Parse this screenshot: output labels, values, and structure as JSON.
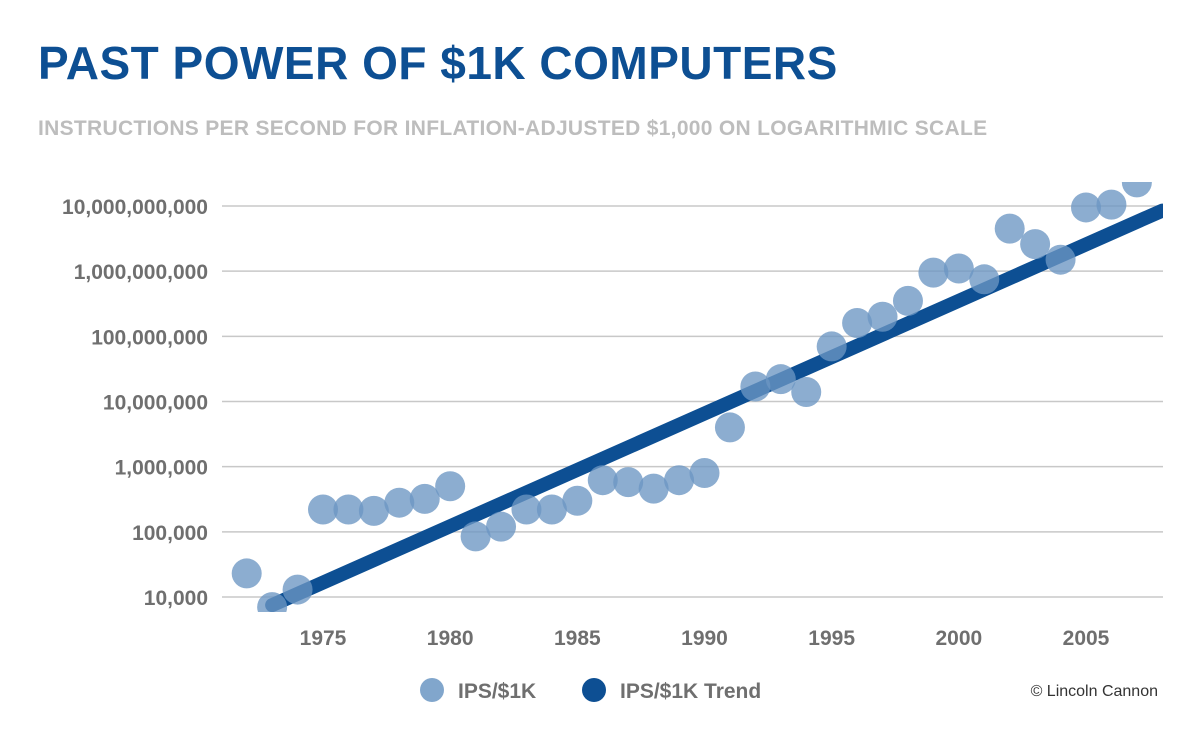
{
  "title": "PAST POWER OF $1K COMPUTERS",
  "subtitle": "INSTRUCTIONS PER SECOND FOR INFLATION-ADJUSTED $1,000 ON LOGARITHMIC SCALE",
  "credit": "© Lincoln Cannon",
  "colors": {
    "title": "#0d4f93",
    "subtitle": "#bdbdbd",
    "axis_text": "#6f6f6f",
    "grid": "#c8c8c8",
    "points": "#6b96c3",
    "trend": "#0d4f93",
    "legend_text": "#6f6f6f",
    "credit": "#333333"
  },
  "chart_data": {
    "type": "scatter",
    "title": "PAST POWER OF $1K COMPUTERS",
    "subtitle": "INSTRUCTIONS PER SECOND FOR INFLATION-ADJUSTED $1,000 ON LOGARITHMIC SCALE",
    "xlabel": "",
    "ylabel": "",
    "y_scale": "log",
    "grid": true,
    "legend_position": "bottom",
    "xlim": [
      1971,
      2008
    ],
    "ylim": [
      5000,
      25000000000
    ],
    "x_ticks": [
      1975,
      1980,
      1985,
      1990,
      1995,
      2000,
      2005
    ],
    "x_tick_labels": [
      "1975",
      "1980",
      "1985",
      "1990",
      "1995",
      "2000",
      "2005"
    ],
    "y_ticks": [
      10000,
      100000,
      1000000,
      10000000,
      100000000,
      1000000000,
      10000000000
    ],
    "y_tick_labels": [
      "10,000",
      "100,000",
      "1,000,000",
      "10,000,000",
      "100,000,000",
      "1,000,000,000",
      "10,000,000,000"
    ],
    "series": [
      {
        "name": "IPS/$1K",
        "kind": "scatter",
        "x": [
          1972,
          1973,
          1974,
          1975,
          1976,
          1977,
          1978,
          1979,
          1980,
          1981,
          1982,
          1983,
          1984,
          1985,
          1986,
          1987,
          1988,
          1989,
          1990,
          1991,
          1992,
          1993,
          1994,
          1995,
          1996,
          1997,
          1998,
          1999,
          2000,
          2001,
          2002,
          2003,
          2004,
          2005,
          2006,
          2007
        ],
        "y": [
          23000,
          7000,
          13000,
          220000,
          220000,
          210000,
          280000,
          320000,
          500000,
          85000,
          120000,
          220000,
          220000,
          300000,
          620000,
          580000,
          460000,
          620000,
          800000,
          4000000,
          17000000,
          22000000,
          14000000,
          70000000,
          160000000,
          200000000,
          350000000,
          950000000,
          1100000000,
          750000000,
          4500000000,
          2600000000,
          1500000000,
          9500000000,
          10500000000,
          23000000000
        ]
      },
      {
        "name": "IPS/$1K Trend",
        "kind": "line",
        "x": [
          1973,
          2008
        ],
        "y": [
          7500,
          8500000000
        ]
      }
    ]
  }
}
